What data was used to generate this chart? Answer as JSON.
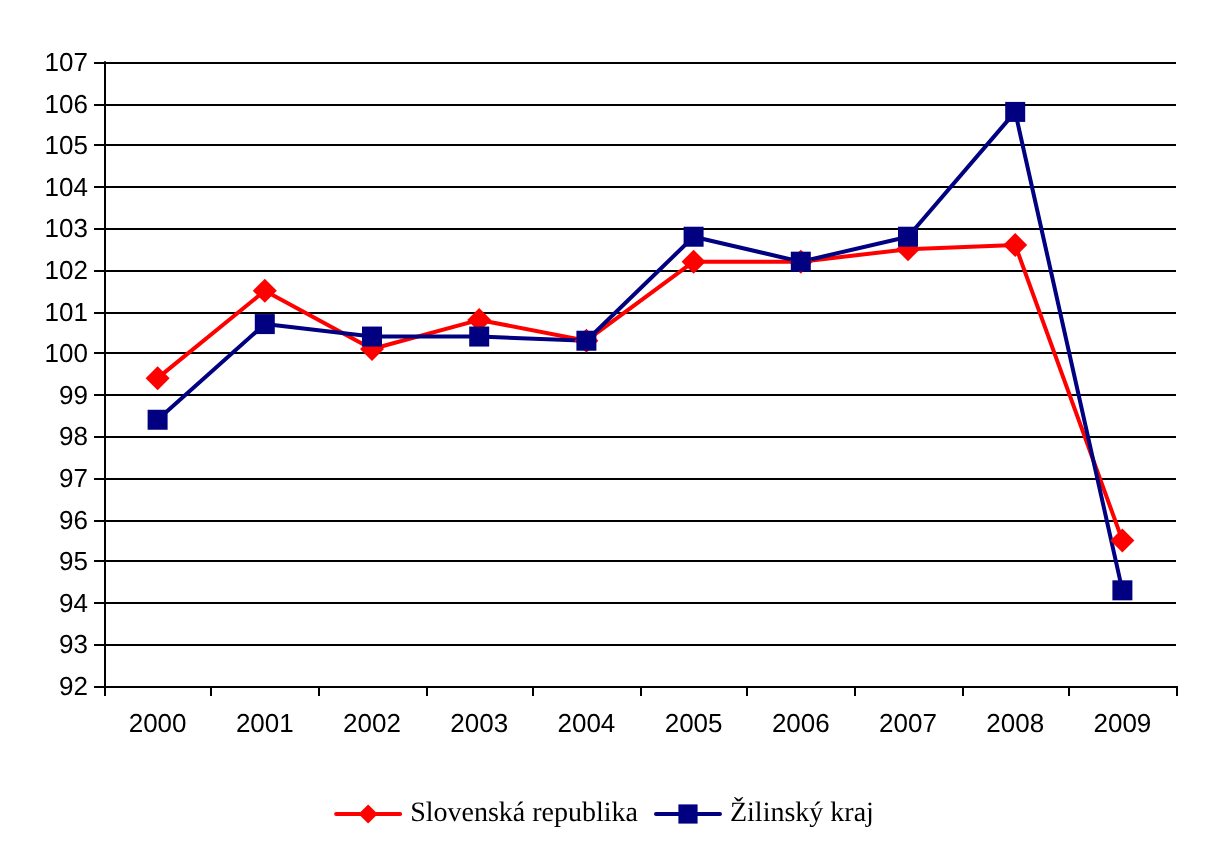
{
  "chart_data": {
    "type": "line",
    "categories": [
      "2000",
      "2001",
      "2002",
      "2003",
      "2004",
      "2005",
      "2006",
      "2007",
      "2008",
      "2009"
    ],
    "series": [
      {
        "name": "Slovenská republika",
        "color": "#ff0000",
        "marker": "diamond",
        "values": [
          99.4,
          101.5,
          100.1,
          100.8,
          100.3,
          102.2,
          102.2,
          102.5,
          102.6,
          95.5
        ]
      },
      {
        "name": "Žilinský kraj",
        "color": "#000080",
        "marker": "square",
        "values": [
          98.4,
          100.7,
          100.4,
          100.4,
          100.3,
          102.8,
          102.2,
          102.8,
          105.8,
          94.3
        ]
      }
    ],
    "ylim": [
      92,
      107
    ],
    "yticks": [
      92,
      93,
      94,
      95,
      96,
      97,
      98,
      99,
      100,
      101,
      102,
      103,
      104,
      105,
      106,
      107
    ],
    "grid": "y",
    "legend": "bottom",
    "line_style": "solid"
  }
}
